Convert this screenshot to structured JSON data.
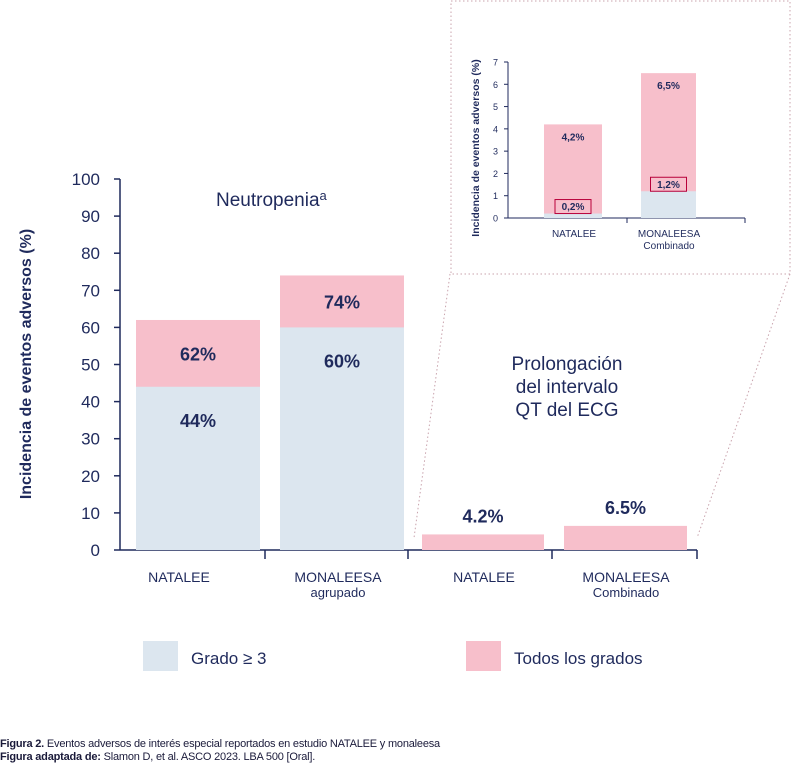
{
  "colors": {
    "grade3": "#dce6ef",
    "all_grades": "#f7bfcb",
    "axis_text": "#1f2a5c",
    "label_text": "#1f2a5c",
    "inset_border": "#c9a3ad",
    "small_box_border": "#b8003a"
  },
  "chart_data": [
    {
      "type": "bar",
      "title": "",
      "ylabel": "Incidencia de eventos adversos (%)",
      "ylim": [
        0,
        100
      ],
      "yticks": [
        "0",
        "10",
        "20",
        "30",
        "40",
        "50",
        "60",
        "70",
        "80",
        "90",
        "100"
      ],
      "group_labels": {
        "neutropenia": "Neutropenia",
        "neutropenia_sup": "a",
        "qt_line1": "Prolongación",
        "qt_line2": "del intervalo",
        "qt_line3": "QT del ECG"
      },
      "categories": [
        {
          "line1": "NATALEE",
          "line2": ""
        },
        {
          "line1": "MONALEESA",
          "line2": "agrupado"
        },
        {
          "line1": "NATALEE",
          "line2": ""
        },
        {
          "line1": "MONALEESA",
          "line2": "Combinado"
        }
      ],
      "series": [
        {
          "name": "Grado ≥ 3",
          "values": [
            44,
            60,
            null,
            null
          ],
          "labels": [
            "44%",
            "60%",
            "",
            ""
          ]
        },
        {
          "name": "Todos los grados",
          "values": [
            62,
            74,
            4.2,
            6.5
          ],
          "labels": [
            "62%",
            "74%",
            "4.2%",
            "6.5%"
          ]
        }
      ],
      "legend": [
        {
          "label": "Grado ≥ 3",
          "color_key": "grade3"
        },
        {
          "label": "Todos los grados",
          "color_key": "all_grades"
        }
      ]
    },
    {
      "type": "bar",
      "title": "",
      "ylabel": "Incidencia de eventos adversos (%)",
      "ylim": [
        0,
        7
      ],
      "yticks": [
        "0",
        "1",
        "2",
        "3",
        "4",
        "5",
        "6",
        "7"
      ],
      "categories": [
        {
          "line1": "NATALEE",
          "line2": ""
        },
        {
          "line1": "MONALEESA",
          "line2": "Combinado"
        }
      ],
      "series": [
        {
          "name": "Grado ≥ 3",
          "values": [
            0.2,
            1.2
          ],
          "labels": [
            "0,2%",
            "1,2%"
          ]
        },
        {
          "name": "Todos los grados",
          "values": [
            4.2,
            6.5
          ],
          "labels": [
            "4,2%",
            "6,5%"
          ]
        }
      ]
    }
  ],
  "caption": {
    "line1_bold": "Figura 2.",
    "line1_text": " Eventos adversos de interés especial reportados en estudio  NATALEE y monaleesa",
    "line2_bold": "Figura adaptada de:",
    "line2_text": " Slamon D, et al. ASCO 2023. LBA 500 [Oral]."
  }
}
